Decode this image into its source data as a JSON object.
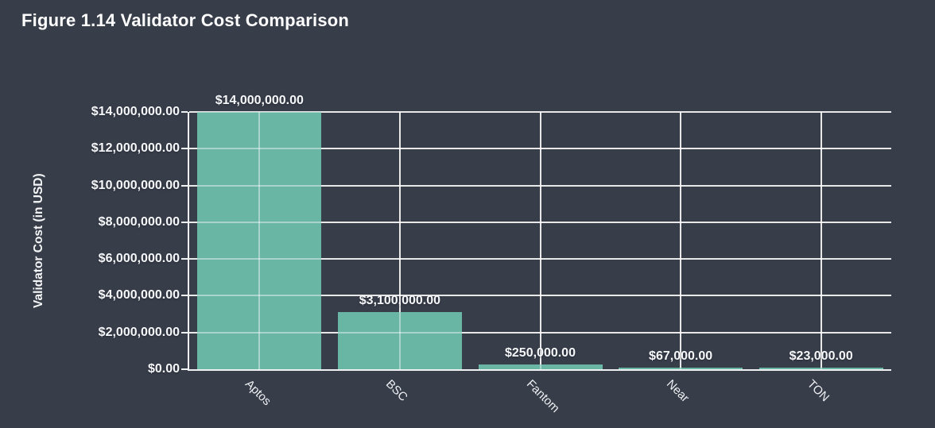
{
  "chart_data": {
    "type": "bar",
    "title": "Figure 1.14 Validator Cost Comparison",
    "xlabel": "",
    "ylabel": "Validator Cost (in USD)",
    "categories": [
      "Aptos",
      "BSC",
      "Fantom",
      "Near",
      "TON"
    ],
    "values": [
      14000000,
      3100000,
      250000,
      67000,
      23000
    ],
    "value_labels": [
      "$14,000,000.00",
      "$3,100,000.00",
      "$250,000.00",
      "$67,000.00",
      "$23,000.00"
    ],
    "ylim": [
      0,
      14000000
    ],
    "ytick_step": 2000000,
    "ytick_labels": [
      "$0.00",
      "$2,000,000.00",
      "$4,000,000.00",
      "$6,000,000.00",
      "$8,000,000.00",
      "$10,000,000.00",
      "$12,000,000.00",
      "$14,000,000.00"
    ],
    "grid": true,
    "legend": "none",
    "colors": {
      "background": "#373d49",
      "bar": "#6ab6a5",
      "gridline": "#ffffff",
      "axis": "#eef0f2",
      "text": "#f6f7f9"
    }
  }
}
